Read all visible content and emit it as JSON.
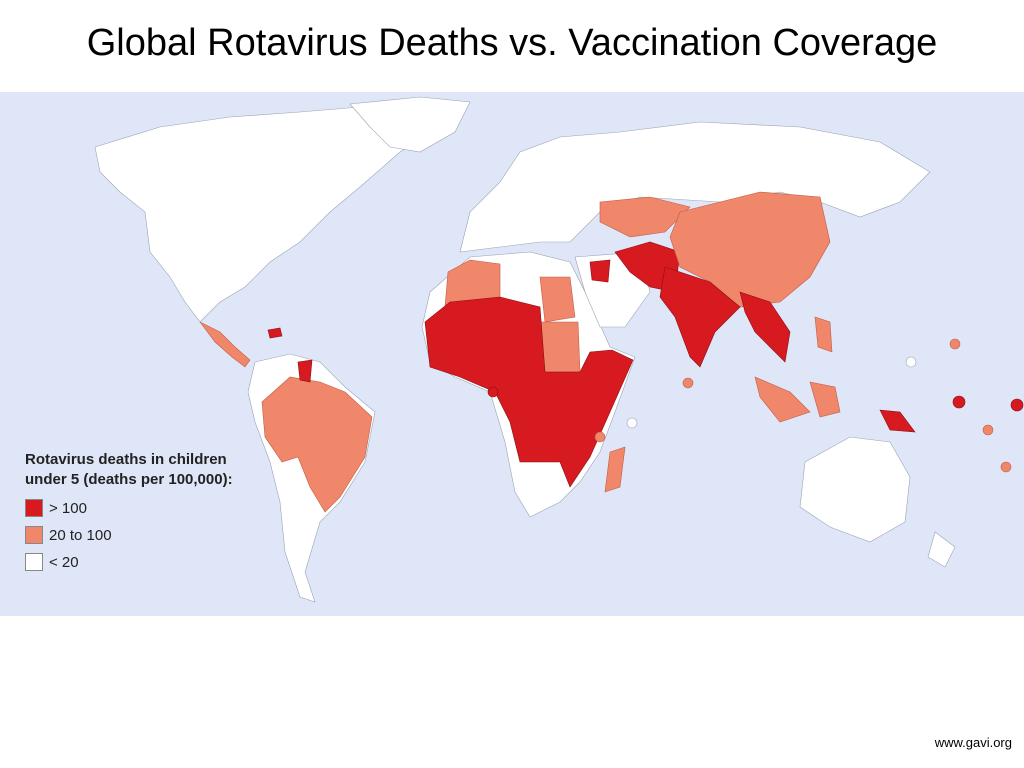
{
  "title": "Global Rotavirus Deaths vs. Vaccination Coverage",
  "legend": {
    "title": "Rotavirus deaths in children under 5 (deaths per 100,000):",
    "items": [
      {
        "label": "> 100",
        "color": "#d71920"
      },
      {
        "label": "20 to 100",
        "color": "#f0866a"
      },
      {
        "label": "< 20",
        "color": "#ffffff"
      }
    ]
  },
  "background_color": "#dfe6f8",
  "source": "www.gavi.org"
}
